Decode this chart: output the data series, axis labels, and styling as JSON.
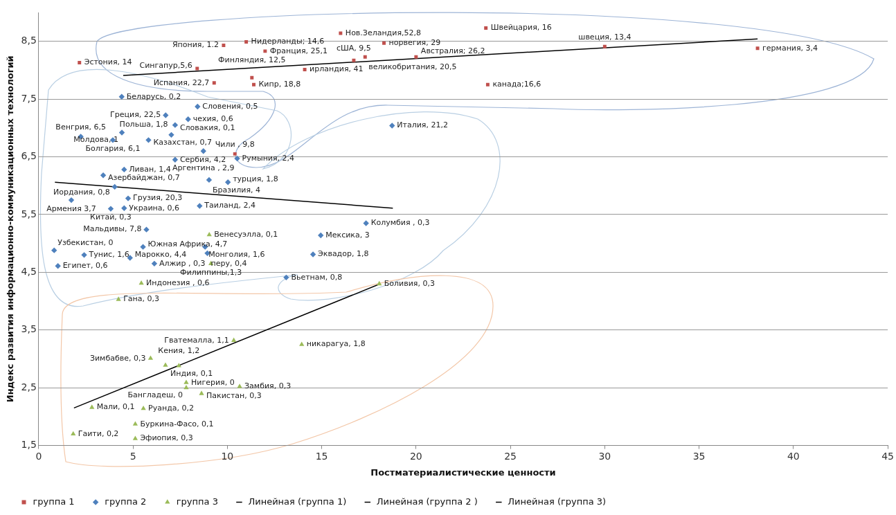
{
  "chart_data": {
    "type": "scatter",
    "xlabel": "Постматериалистические ценности",
    "ylabel": "Индекс развития информационно-коммуникационных технологий",
    "xlim": [
      0,
      45
    ],
    "xticks": [
      0,
      5,
      10,
      15,
      20,
      25,
      30,
      35,
      40,
      45
    ],
    "ylim": [
      1.5,
      9
    ],
    "yticks": [
      {
        "value": 1.5,
        "label": "1,5"
      },
      {
        "value": 2.5,
        "label": "2,5"
      },
      {
        "value": 3.5,
        "label": "3,5"
      },
      {
        "value": 4.5,
        "label": "4,5"
      },
      {
        "value": 5.5,
        "label": "5,5"
      },
      {
        "value": 6.5,
        "label": "6,5"
      },
      {
        "value": 7.5,
        "label": "7,5"
      },
      {
        "value": 8.5,
        "label": "8,5"
      }
    ],
    "grid": "y",
    "legend": "bottom",
    "series": [
      {
        "name": "группа 1",
        "type": "scatter",
        "marker": "square",
        "color": "#c0504d",
        "x": [
          2.16,
          8.4,
          9.8,
          11.0,
          12.0,
          14.1,
          9.3,
          11.3,
          11.4,
          16.0,
          18.3,
          16.7,
          17.3,
          20.0,
          23.7,
          23.8,
          30.0,
          38.1,
          10.4
        ],
        "values": [
          8.13,
          8.03,
          8.43,
          8.49,
          8.33,
          8.01,
          7.78,
          7.87,
          7.75,
          8.64,
          8.47,
          8.17,
          8.23,
          8.23,
          8.73,
          7.75,
          8.41,
          8.38,
          6.55
        ]
      },
      {
        "name": "группа 2",
        "type": "scatter",
        "marker": "diamond",
        "color": "#4f81bd",
        "x": [
          4.4,
          8.42,
          6.73,
          7.92,
          7.23,
          7.03,
          2.23,
          5.82,
          3.93,
          4.41,
          8.73,
          7.23,
          10.52,
          4.53,
          3.42,
          4.03,
          9.03,
          10.03,
          1.73,
          4.74,
          8.53,
          3.82,
          4.53,
          5.71,
          0.82,
          1.02,
          2.41,
          5.53,
          4.84,
          6.13,
          8.82,
          8.94,
          17.35,
          14.95,
          14.54,
          13.12,
          18.73
        ],
        "values": [
          7.54,
          7.37,
          7.22,
          7.15,
          7.05,
          6.88,
          6.85,
          6.79,
          6.79,
          6.92,
          6.6,
          6.45,
          6.47,
          6.28,
          6.18,
          5.98,
          6.1,
          6.06,
          5.75,
          5.78,
          5.65,
          5.6,
          5.61,
          5.24,
          4.88,
          4.61,
          4.8,
          4.94,
          4.75,
          4.65,
          4.94,
          4.83,
          5.35,
          5.14,
          4.81,
          4.41,
          7.04
        ]
      },
      {
        "name": "группа 3",
        "type": "scatter",
        "marker": "triangle",
        "color": "#9bbb59",
        "x": [
          9.04,
          9.13,
          5.44,
          4.23,
          10.34,
          5.93,
          6.72,
          7.43,
          7.82,
          7.82,
          10.65,
          8.63,
          2.82,
          5.55,
          5.12,
          5.12,
          1.83,
          13.94,
          18.05
        ],
        "values": [
          5.15,
          4.65,
          4.31,
          4.03,
          3.32,
          3.01,
          2.89,
          2.88,
          2.59,
          2.5,
          2.52,
          2.4,
          2.16,
          2.14,
          1.87,
          1.62,
          1.7,
          3.25,
          4.3
        ]
      },
      {
        "name": "Линейная (группа 1)",
        "type": "line",
        "line_style": "solid",
        "color": "#000000",
        "x": [
          4.48,
          38.1
        ],
        "values": [
          7.91,
          8.54
        ]
      },
      {
        "name": "Линейная (группа 2 )",
        "type": "line",
        "line_style": "solid",
        "color": "#000000",
        "x": [
          0.86,
          18.77
        ],
        "values": [
          6.06,
          5.61
        ]
      },
      {
        "name": "Линейная (группа 3)",
        "type": "line",
        "line_style": "solid",
        "color": "#000000",
        "x": [
          1.87,
          18.1
        ],
        "values": [
          2.15,
          4.3
        ]
      }
    ],
    "annotations": [
      {
        "text": "Эстония, 14",
        "x": 2.16,
        "y": 8.13
      },
      {
        "text": "Сингапур,5,6",
        "x": 8.4,
        "y": 8.03
      },
      {
        "text": "Япония, 1.2",
        "x": 9.8,
        "y": 8.43
      },
      {
        "text": "Нидерланды; 14,6",
        "x": 11.0,
        "y": 8.49
      },
      {
        "text": "Франция, 25,1",
        "x": 12.0,
        "y": 8.33
      },
      {
        "text": "ирландия, 41",
        "x": 14.1,
        "y": 8.01
      },
      {
        "text": "Испания, 22,7",
        "x": 9.3,
        "y": 7.78
      },
      {
        "text": "Финляндия, 12,5",
        "x": 11.3,
        "y": 7.87
      },
      {
        "text": "Кипр, 18,8",
        "x": 11.4,
        "y": 7.75
      },
      {
        "text": "Нов.Зеландия,52,8",
        "x": 16.0,
        "y": 8.64
      },
      {
        "text": "норвегия, 29",
        "x": 18.3,
        "y": 8.47
      },
      {
        "text": "сША, 9,5",
        "x": 16.7,
        "y": 8.17
      },
      {
        "text": "великобритания, 20,5",
        "x": 17.3,
        "y": 8.23
      },
      {
        "text": "Австралия; 26,2",
        "x": 20.0,
        "y": 8.23
      },
      {
        "text": "Швейцария, 16",
        "x": 23.7,
        "y": 8.73
      },
      {
        "text": "канада;16,6",
        "x": 23.8,
        "y": 7.75
      },
      {
        "text": "швеция, 13,4",
        "x": 30.0,
        "y": 8.41
      },
      {
        "text": "германия, 3,4",
        "x": 38.1,
        "y": 8.38
      },
      {
        "text": "Чили , 9,8",
        "x": 10.4,
        "y": 6.55
      },
      {
        "text": "Беларусь, 0,2",
        "x": 4.4,
        "y": 7.54
      },
      {
        "text": "Словения, 0,5",
        "x": 8.42,
        "y": 7.37
      },
      {
        "text": "Греция, 22,5",
        "x": 6.73,
        "y": 7.22
      },
      {
        "text": "чехия, 0,6",
        "x": 7.92,
        "y": 7.15
      },
      {
        "text": "Словакия, 0,1",
        "x": 7.23,
        "y": 7.05
      },
      {
        "text": "Польша, 1,8",
        "x": 7.03,
        "y": 6.88
      },
      {
        "text": "Венгрия, 6,5",
        "x": 2.23,
        "y": 6.85
      },
      {
        "text": "Казахстан, 0,7",
        "x": 5.82,
        "y": 6.79
      },
      {
        "text": "Болгария, 6,1",
        "x": 3.93,
        "y": 6.79
      },
      {
        "text": "Молдова, 1",
        "x": 4.41,
        "y": 6.92
      },
      {
        "text": "Аргентина , 2,9",
        "x": 8.73,
        "y": 6.6
      },
      {
        "text": "Сербия, 4,2",
        "x": 7.23,
        "y": 6.45
      },
      {
        "text": "Румыния, 2,4",
        "x": 10.52,
        "y": 6.47
      },
      {
        "text": "Ливан, 1,4",
        "x": 4.53,
        "y": 6.28
      },
      {
        "text": "Азербайджан, 0,7",
        "x": 3.42,
        "y": 6.18
      },
      {
        "text": "Иордания, 0,8",
        "x": 4.03,
        "y": 5.98
      },
      {
        "text": "Бразилия, 4",
        "x": 9.03,
        "y": 6.1
      },
      {
        "text": "турция, 1,8",
        "x": 10.03,
        "y": 6.06
      },
      {
        "text": "Армения 3,7",
        "x": 1.73,
        "y": 5.75
      },
      {
        "text": "Грузия, 20,3",
        "x": 4.74,
        "y": 5.78
      },
      {
        "text": "Таиланд, 2,4",
        "x": 8.53,
        "y": 5.65
      },
      {
        "text": "Китай, 0,3",
        "x": 3.82,
        "y": 5.6
      },
      {
        "text": "Украина, 0,6",
        "x": 4.53,
        "y": 5.61
      },
      {
        "text": "Мальдивы, 7,8",
        "x": 5.71,
        "y": 5.24
      },
      {
        "text": "Узбекистан, 0",
        "x": 0.82,
        "y": 4.88
      },
      {
        "text": "Египет, 0,6",
        "x": 1.02,
        "y": 4.61
      },
      {
        "text": "Тунис, 1,6",
        "x": 2.41,
        "y": 4.8
      },
      {
        "text": "Южная Африка, 4,7",
        "x": 5.53,
        "y": 4.94
      },
      {
        "text": "Марокко, 4,4",
        "x": 4.84,
        "y": 4.75
      },
      {
        "text": "Алжир , 0,3",
        "x": 6.13,
        "y": 4.65
      },
      {
        "text": "Монголия, 1,6",
        "x": 8.82,
        "y": 4.94
      },
      {
        "text": "перу, 0,4",
        "x": 8.94,
        "y": 4.83
      },
      {
        "text": "Колумбия , 0,3",
        "x": 17.35,
        "y": 5.35
      },
      {
        "text": "Мексика, 3",
        "x": 14.95,
        "y": 5.14
      },
      {
        "text": "Эквадор, 1,8",
        "x": 14.54,
        "y": 4.81
      },
      {
        "text": "Вьетнам, 0,8",
        "x": 13.12,
        "y": 4.41
      },
      {
        "text": "Италия, 21,2",
        "x": 18.73,
        "y": 7.04
      },
      {
        "text": "Венесуэлла, 0,1",
        "x": 9.04,
        "y": 5.15
      },
      {
        "text": "Филиппины,1,3",
        "x": 9.13,
        "y": 4.65
      },
      {
        "text": "Индонезия , 0,6",
        "x": 5.44,
        "y": 4.31
      },
      {
        "text": "Гана, 0,3",
        "x": 4.23,
        "y": 4.03
      },
      {
        "text": "Гватемалла, 1,1",
        "x": 10.34,
        "y": 3.32
      },
      {
        "text": "Зимбабве, 0,3",
        "x": 5.93,
        "y": 3.01
      },
      {
        "text": "Индия, 0,1",
        "x": 6.72,
        "y": 2.89
      },
      {
        "text": "Кения, 1,2",
        "x": 7.43,
        "y": 2.88
      },
      {
        "text": "Нигерия, 0",
        "x": 7.82,
        "y": 2.59
      },
      {
        "text": "Бангладеш, 0",
        "x": 7.82,
        "y": 2.5
      },
      {
        "text": "Замбия, 0,3",
        "x": 10.65,
        "y": 2.52
      },
      {
        "text": "Пакистан, 0,3",
        "x": 8.63,
        "y": 2.4
      },
      {
        "text": "Мали, 0,1",
        "x": 2.82,
        "y": 2.16
      },
      {
        "text": "Руанда, 0,2",
        "x": 5.55,
        "y": 2.14
      },
      {
        "text": "Буркина-Фасо, 0,1",
        "x": 5.12,
        "y": 1.87
      },
      {
        "text": "Эфиопия, 0,3",
        "x": 5.12,
        "y": 1.62
      },
      {
        "text": "Гаити, 0,2",
        "x": 1.83,
        "y": 1.7
      },
      {
        "text": "никарагуа, 1,8",
        "x": 13.94,
        "y": 3.25
      },
      {
        "text": "Боливия, 0,3",
        "x": 18.05,
        "y": 4.3
      }
    ]
  }
}
